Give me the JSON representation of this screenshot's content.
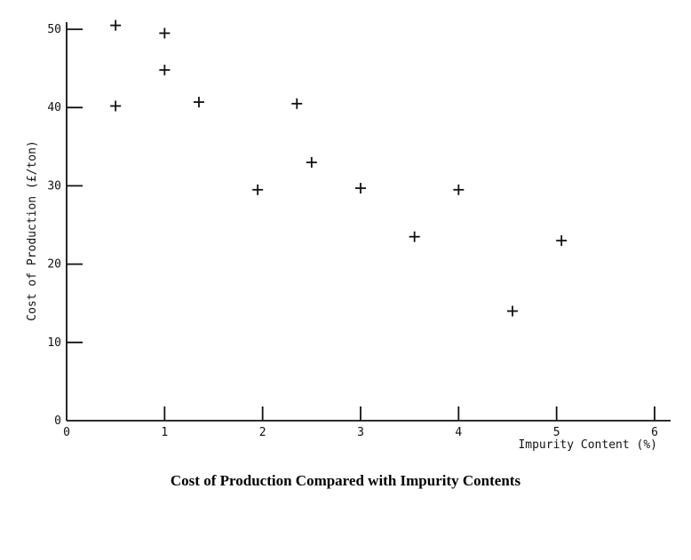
{
  "chart_data": {
    "type": "scatter",
    "title": "Cost of Production Compared with Impurity Contents",
    "xlabel": "Impurity Content (%)",
    "ylabel": "Cost of Production (£/ton)",
    "xlim": [
      0,
      6
    ],
    "ylim": [
      0,
      50
    ],
    "x_ticks": [
      0,
      1,
      2,
      3,
      4,
      5,
      6
    ],
    "y_ticks": [
      0,
      10,
      20,
      30,
      40,
      50
    ],
    "grid": false,
    "marker": "plus",
    "colors": {
      "ink": "#111111",
      "background": "#ffffff"
    },
    "points": [
      {
        "x": 0.5,
        "y": 50.5
      },
      {
        "x": 0.5,
        "y": 40.2
      },
      {
        "x": 1.0,
        "y": 49.5
      },
      {
        "x": 1.0,
        "y": 44.8
      },
      {
        "x": 1.35,
        "y": 40.7
      },
      {
        "x": 1.95,
        "y": 29.5
      },
      {
        "x": 2.35,
        "y": 40.5
      },
      {
        "x": 2.5,
        "y": 33.0
      },
      {
        "x": 3.0,
        "y": 29.7
      },
      {
        "x": 3.55,
        "y": 23.5
      },
      {
        "x": 4.0,
        "y": 29.5
      },
      {
        "x": 4.55,
        "y": 14.0
      },
      {
        "x": 5.05,
        "y": 23.0
      }
    ]
  }
}
